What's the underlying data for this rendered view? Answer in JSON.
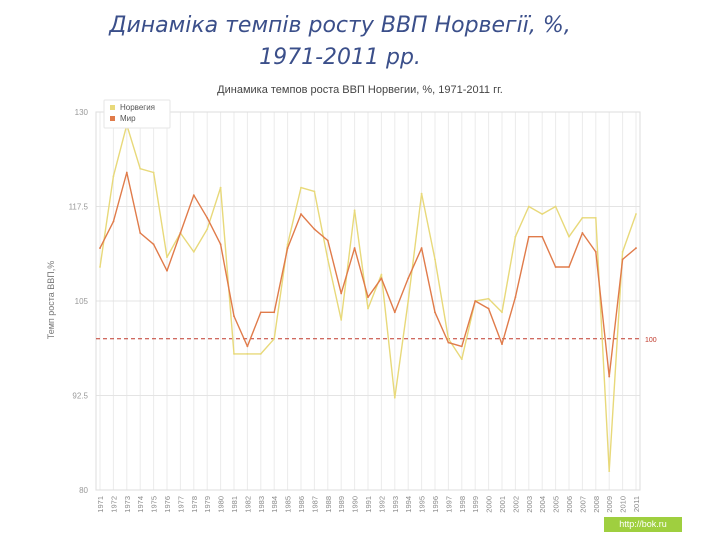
{
  "slide": {
    "title_line1": "Динаміка темпів росту ВВП Норвегії, %,",
    "title_line2": "1971-2011 рр."
  },
  "watermark": "http://bok.ru",
  "chart_data": {
    "type": "line",
    "title": "Динамика темпов роста ВВП Норвегии, %, 1971-2011 гг.",
    "ylabel": "Темп роста ВВП,%",
    "xlabel": "",
    "ylim": [
      80,
      130
    ],
    "yticks": [
      80,
      92.5,
      105,
      117.5,
      130
    ],
    "ytick_labels": [
      "80",
      "92.5",
      "105",
      "117.5",
      "130"
    ],
    "x": [
      "1971",
      "1972",
      "1973",
      "1974",
      "1975",
      "1976",
      "1977",
      "1978",
      "1979",
      "1980",
      "1981",
      "1982",
      "1983",
      "1984",
      "1985",
      "1986",
      "1987",
      "1988",
      "1989",
      "1990",
      "1991",
      "1992",
      "1993",
      "1994",
      "1995",
      "1996",
      "1997",
      "1998",
      "1999",
      "2000",
      "2001",
      "2002",
      "2003",
      "2004",
      "2005",
      "2006",
      "2007",
      "2008",
      "2009",
      "2010",
      "2011"
    ],
    "series": [
      {
        "name": "Норвегия",
        "color": "#e8d97a",
        "values": [
          109.5,
          121.5,
          128.3,
          122.5,
          122,
          110.8,
          114,
          111.5,
          114.5,
          120,
          98,
          98,
          98,
          100,
          112.5,
          120,
          119.5,
          110.5,
          102.5,
          117,
          104,
          108.5,
          92.2,
          105,
          119.2,
          110.5,
          100,
          97.3,
          105,
          105.3,
          103.5,
          113.5,
          117.5,
          116.5,
          117.5,
          113.5,
          116,
          116,
          82.5,
          111.5,
          116.5
        ]
      },
      {
        "name": "Мир",
        "color": "#e07b4a",
        "values": [
          112,
          115.5,
          122,
          114,
          112.5,
          109,
          114,
          119,
          116,
          112.5,
          103,
          99,
          103.5,
          103.5,
          112,
          116.5,
          114.5,
          113,
          106,
          112,
          105.5,
          108,
          103.5,
          108,
          112,
          103.5,
          99.5,
          99,
          105,
          104,
          99.3,
          105.5,
          113.5,
          113.5,
          109.5,
          109.5,
          114,
          111.5,
          95,
          110.5,
          112
        ]
      }
    ],
    "reference_line": {
      "value": 100,
      "label": "100",
      "color": "#c0392b"
    },
    "legend": "top-left",
    "grid": true
  }
}
